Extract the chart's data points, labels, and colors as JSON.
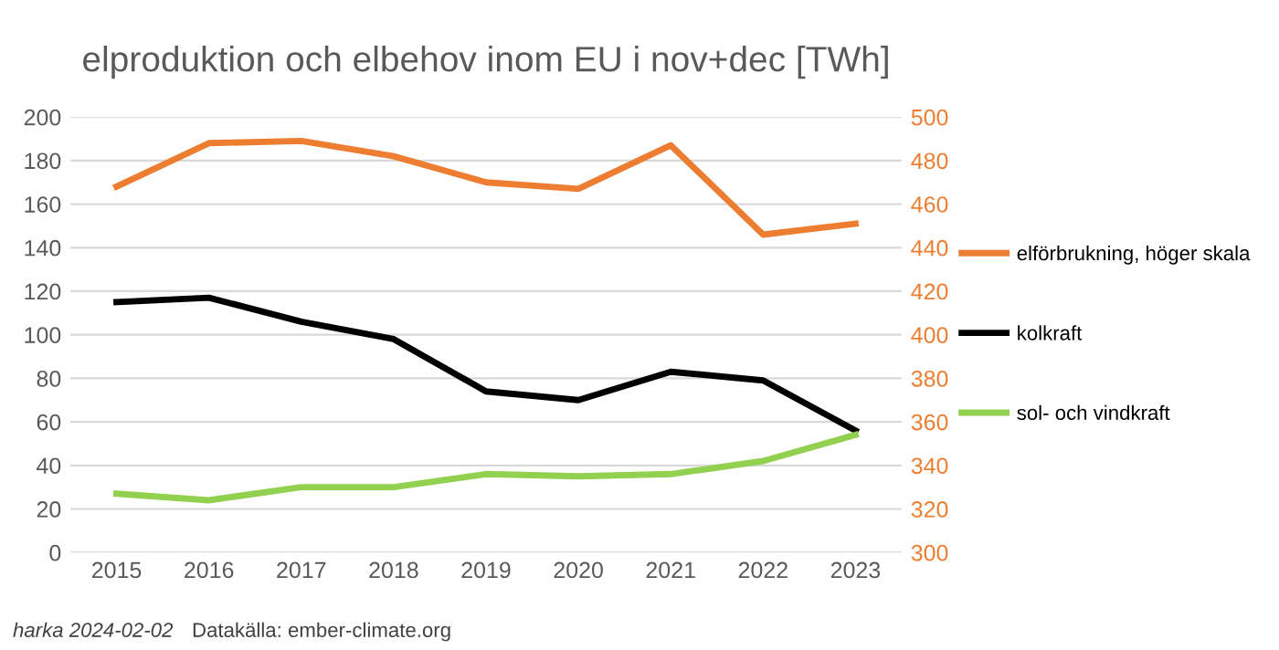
{
  "chart_data": {
    "type": "line",
    "title": "elproduktion och elbehov inom EU i nov+dec [TWh]",
    "categories": [
      "2015",
      "2016",
      "2017",
      "2018",
      "2019",
      "2020",
      "2021",
      "2022",
      "2023"
    ],
    "series": [
      {
        "name": "elförbrukning, höger skala",
        "color": "#ed7d31",
        "axis": "y2",
        "values": [
          468,
          488,
          489,
          482,
          470,
          467,
          487,
          446,
          451
        ]
      },
      {
        "name": "kolkraft",
        "color": "#000000",
        "values": [
          115,
          117,
          106,
          98,
          74,
          70,
          83,
          79,
          56
        ]
      },
      {
        "name": "sol- och vindkraft",
        "color": "#92d050",
        "values": [
          27,
          24,
          30,
          30,
          36,
          35,
          36,
          42,
          54
        ]
      }
    ],
    "ylim": [
      0,
      200
    ],
    "yticks": [
      0,
      20,
      40,
      60,
      80,
      100,
      120,
      140,
      160,
      180,
      200
    ],
    "y2lim": [
      300,
      500
    ],
    "y2ticks": [
      300,
      320,
      340,
      360,
      380,
      400,
      420,
      440,
      460,
      480,
      500
    ],
    "grid": "y",
    "legend": "right",
    "marker": "none",
    "line_style": "solid",
    "annotations": [
      "harka 2024-02-02",
      "Datakälla: ember-climate.org"
    ]
  }
}
